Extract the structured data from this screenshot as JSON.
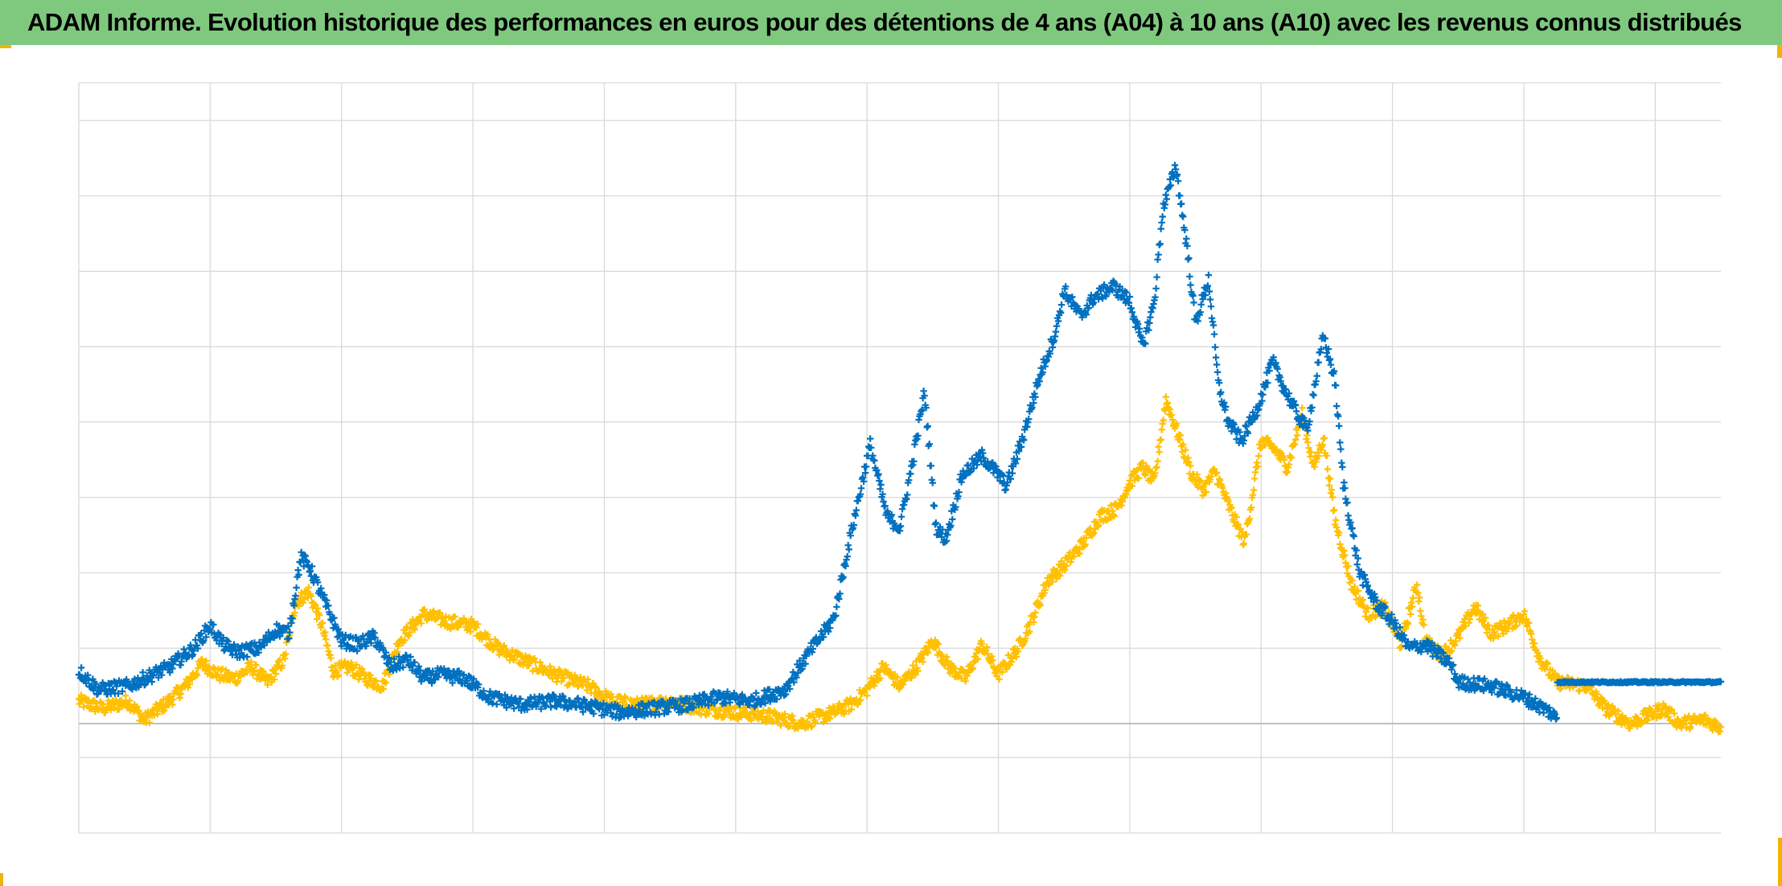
{
  "title": "ADAM Informe. Evolution historique des performances en euros pour des détentions de 4 ans (A04) à 10 ans (A10) avec les revenus connus distribués",
  "colors": {
    "title_background": "#7fc97f",
    "corner_marks": "#f0b400",
    "grid": "#d9d9d9",
    "zero_line": "#bfbfbf"
  },
  "chart_data": {
    "type": "scatter",
    "marker": "plus",
    "grid": true,
    "legend": "none",
    "axis_labels_visible": false,
    "x_count": 1001,
    "x_divisions": 12.5,
    "ylim": [
      -1.45,
      8.5
    ],
    "y_gridlines": [
      -0.45,
      0,
      1,
      2,
      3,
      4,
      5,
      6,
      7,
      8
    ],
    "series": [
      {
        "color": "#0070c0",
        "points": [
          [
            0,
            0.7
          ],
          [
            12,
            0.45
          ],
          [
            30,
            0.5
          ],
          [
            55,
            0.75
          ],
          [
            70,
            1.0
          ],
          [
            80,
            1.3
          ],
          [
            88,
            1.05
          ],
          [
            96,
            0.95
          ],
          [
            110,
            1.0
          ],
          [
            120,
            1.25
          ],
          [
            128,
            1.2
          ],
          [
            135,
            2.2
          ],
          [
            140,
            2.1
          ],
          [
            145,
            1.85
          ],
          [
            150,
            1.6
          ],
          [
            160,
            1.1
          ],
          [
            170,
            1.05
          ],
          [
            180,
            1.15
          ],
          [
            190,
            0.75
          ],
          [
            200,
            0.85
          ],
          [
            210,
            0.6
          ],
          [
            220,
            0.65
          ],
          [
            235,
            0.6
          ],
          [
            250,
            0.35
          ],
          [
            270,
            0.25
          ],
          [
            290,
            0.3
          ],
          [
            305,
            0.25
          ],
          [
            330,
            0.15
          ],
          [
            350,
            0.2
          ],
          [
            370,
            0.25
          ],
          [
            390,
            0.35
          ],
          [
            410,
            0.3
          ],
          [
            430,
            0.45
          ],
          [
            445,
            0.95
          ],
          [
            460,
            1.4
          ],
          [
            470,
            2.5
          ],
          [
            482,
            3.7
          ],
          [
            492,
            2.75
          ],
          [
            500,
            2.6
          ],
          [
            508,
            3.5
          ],
          [
            515,
            4.4
          ],
          [
            522,
            2.6
          ],
          [
            528,
            2.45
          ],
          [
            538,
            3.3
          ],
          [
            550,
            3.55
          ],
          [
            560,
            3.3
          ],
          [
            565,
            3.15
          ],
          [
            575,
            3.8
          ],
          [
            585,
            4.6
          ],
          [
            595,
            5.2
          ],
          [
            600,
            5.75
          ],
          [
            610,
            5.4
          ],
          [
            618,
            5.65
          ],
          [
            630,
            5.8
          ],
          [
            640,
            5.6
          ],
          [
            648,
            5.0
          ],
          [
            655,
            5.6
          ],
          [
            660,
            6.8
          ],
          [
            668,
            7.4
          ],
          [
            675,
            6.3
          ],
          [
            680,
            5.3
          ],
          [
            688,
            5.9
          ],
          [
            694,
            4.5
          ],
          [
            700,
            4.0
          ],
          [
            708,
            3.75
          ],
          [
            718,
            4.2
          ],
          [
            727,
            4.8
          ],
          [
            734,
            4.45
          ],
          [
            742,
            4.1
          ],
          [
            748,
            3.9
          ],
          [
            758,
            5.15
          ],
          [
            765,
            4.55
          ],
          [
            770,
            3.2
          ],
          [
            780,
            2.0
          ],
          [
            790,
            1.6
          ],
          [
            800,
            1.35
          ],
          [
            810,
            1.0
          ],
          [
            820,
            1.05
          ],
          [
            835,
            0.8
          ],
          [
            840,
            0.55
          ],
          [
            860,
            0.5
          ],
          [
            880,
            0.35
          ],
          [
            896,
            0.15
          ],
          [
            900,
            0.07
          ],
          [
            900,
            0.55
          ],
          [
            1000,
            0.55
          ]
        ]
      },
      {
        "color": "#ffc000",
        "points": [
          [
            0,
            0.3
          ],
          [
            15,
            0.2
          ],
          [
            30,
            0.3
          ],
          [
            40,
            0.05
          ],
          [
            55,
            0.3
          ],
          [
            65,
            0.5
          ],
          [
            75,
            0.8
          ],
          [
            85,
            0.65
          ],
          [
            95,
            0.6
          ],
          [
            105,
            0.75
          ],
          [
            115,
            0.55
          ],
          [
            125,
            0.85
          ],
          [
            132,
            1.6
          ],
          [
            140,
            1.75
          ],
          [
            148,
            1.3
          ],
          [
            155,
            0.7
          ],
          [
            165,
            0.75
          ],
          [
            175,
            0.6
          ],
          [
            185,
            0.5
          ],
          [
            195,
            1.1
          ],
          [
            210,
            1.45
          ],
          [
            225,
            1.35
          ],
          [
            240,
            1.3
          ],
          [
            255,
            1.0
          ],
          [
            270,
            0.85
          ],
          [
            290,
            0.65
          ],
          [
            310,
            0.5
          ],
          [
            325,
            0.3
          ],
          [
            340,
            0.25
          ],
          [
            360,
            0.3
          ],
          [
            380,
            0.2
          ],
          [
            400,
            0.15
          ],
          [
            420,
            0.1
          ],
          [
            440,
            0.0
          ],
          [
            460,
            0.15
          ],
          [
            470,
            0.25
          ],
          [
            480,
            0.45
          ],
          [
            490,
            0.75
          ],
          [
            500,
            0.5
          ],
          [
            510,
            0.75
          ],
          [
            520,
            1.1
          ],
          [
            530,
            0.75
          ],
          [
            540,
            0.6
          ],
          [
            550,
            1.05
          ],
          [
            560,
            0.65
          ],
          [
            572,
            1.0
          ],
          [
            580,
            1.35
          ],
          [
            590,
            1.9
          ],
          [
            600,
            2.1
          ],
          [
            612,
            2.4
          ],
          [
            622,
            2.75
          ],
          [
            632,
            2.85
          ],
          [
            640,
            3.2
          ],
          [
            648,
            3.4
          ],
          [
            655,
            3.2
          ],
          [
            662,
            4.3
          ],
          [
            670,
            3.8
          ],
          [
            678,
            3.3
          ],
          [
            685,
            3.1
          ],
          [
            692,
            3.35
          ],
          [
            700,
            2.9
          ],
          [
            710,
            2.4
          ],
          [
            720,
            3.75
          ],
          [
            728,
            3.65
          ],
          [
            736,
            3.4
          ],
          [
            745,
            4.1
          ],
          [
            752,
            3.4
          ],
          [
            758,
            3.8
          ],
          [
            765,
            2.7
          ],
          [
            775,
            1.85
          ],
          [
            785,
            1.45
          ],
          [
            795,
            1.55
          ],
          [
            805,
            1.05
          ],
          [
            815,
            1.85
          ],
          [
            820,
            1.1
          ],
          [
            830,
            0.9
          ],
          [
            840,
            1.15
          ],
          [
            850,
            1.55
          ],
          [
            860,
            1.2
          ],
          [
            870,
            1.3
          ],
          [
            880,
            1.45
          ],
          [
            890,
            0.85
          ],
          [
            900,
            0.55
          ],
          [
            918,
            0.5
          ],
          [
            930,
            0.2
          ],
          [
            945,
            0.0
          ],
          [
            955,
            0.1
          ],
          [
            965,
            0.2
          ],
          [
            975,
            0.0
          ],
          [
            990,
            0.05
          ],
          [
            1000,
            -0.05
          ]
        ]
      }
    ]
  }
}
